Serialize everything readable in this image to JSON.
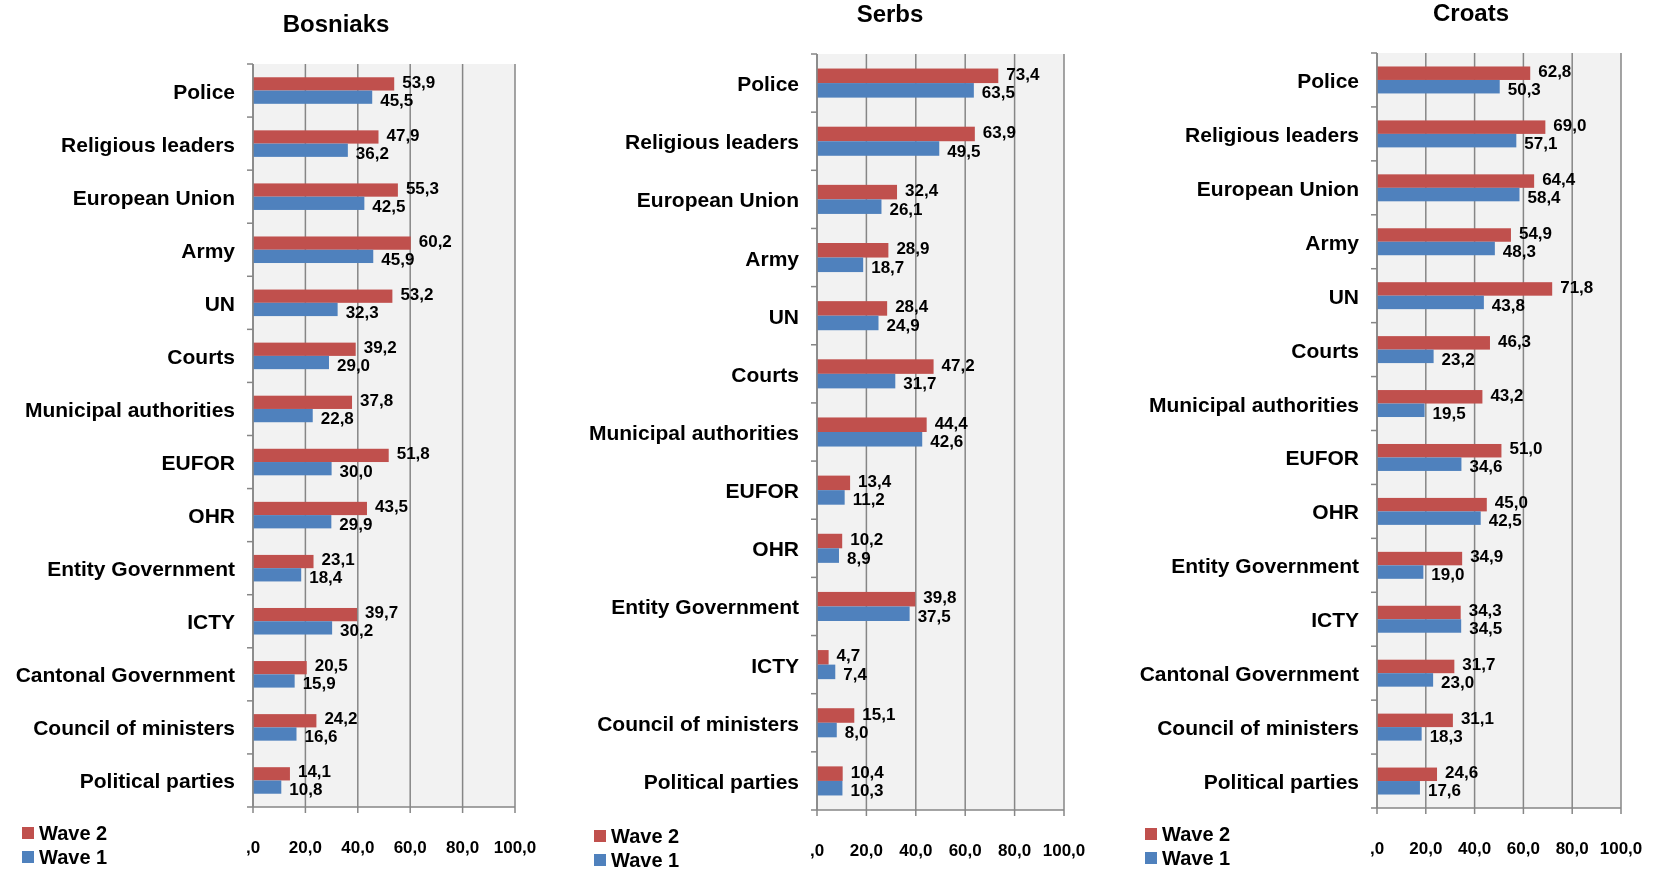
{
  "chart_data": [
    {
      "type": "bar",
      "orientation": "horizontal",
      "title": "Bosniaks",
      "categories": [
        "Police",
        "Religious leaders",
        "European Union",
        "Army",
        "UN",
        "Courts",
        "Municipal authorities",
        "EUFOR",
        "OHR",
        "Entity Government",
        "ICTY",
        "Cantonal Government",
        "Council of ministers",
        "Political parties"
      ],
      "series": [
        {
          "name": "Wave 2",
          "color": "#c0504d",
          "values": [
            53.9,
            47.9,
            55.3,
            60.2,
            53.2,
            39.2,
            37.8,
            51.8,
            43.5,
            23.1,
            39.7,
            20.5,
            24.2,
            14.1
          ],
          "value_labels": [
            "53,9",
            "47,9",
            "55,3",
            "60,2",
            "53,2",
            "39,2",
            "37,8",
            "51,8",
            "43,5",
            "23,1",
            "39,7",
            "20,5",
            "24,2",
            "14,1"
          ]
        },
        {
          "name": "Wave 1",
          "color": "#4f81bd",
          "values": [
            45.5,
            36.2,
            42.5,
            45.9,
            32.3,
            29.0,
            22.8,
            30.0,
            29.9,
            18.4,
            30.2,
            15.9,
            16.6,
            10.8
          ],
          "value_labels": [
            "45,5",
            "36,2",
            "42,5",
            "45,9",
            "32,3",
            "29,0",
            "22,8",
            "30,0",
            "29,9",
            "18,4",
            "30,2",
            "15,9",
            "16,6",
            "10,8"
          ]
        }
      ],
      "xlim": [
        0,
        100
      ],
      "xticks": [
        {
          "value": 0,
          "label": ",0"
        },
        {
          "value": 20,
          "label": "20,0"
        },
        {
          "value": 40,
          "label": "40,0"
        },
        {
          "value": 60,
          "label": "60,0"
        },
        {
          "value": 80,
          "label": "80,0"
        },
        {
          "value": 100,
          "label": "100,0"
        }
      ],
      "grid": "x",
      "legend": "bottom left"
    },
    {
      "type": "bar",
      "orientation": "horizontal",
      "title": "Serbs",
      "categories": [
        "Police",
        "Religious leaders",
        "European Union",
        "Army",
        "UN",
        "Courts",
        "Municipal authorities",
        "EUFOR",
        "OHR",
        "Entity Government",
        "ICTY",
        "Council of ministers",
        "Political parties"
      ],
      "series": [
        {
          "name": "Wave 2",
          "color": "#c0504d",
          "values": [
            73.4,
            63.9,
            32.4,
            28.9,
            28.4,
            47.2,
            44.4,
            13.4,
            10.2,
            39.8,
            4.7,
            15.1,
            10.4
          ],
          "value_labels": [
            "73,4",
            "63,9",
            "32,4",
            "28,9",
            "28,4",
            "47,2",
            "44,4",
            "13,4",
            "10,2",
            "39,8",
            "4,7",
            "15,1",
            "10,4"
          ]
        },
        {
          "name": "Wave 1",
          "color": "#4f81bd",
          "values": [
            63.5,
            49.5,
            26.1,
            18.7,
            24.9,
            31.7,
            42.6,
            11.2,
            8.9,
            37.5,
            7.4,
            8.0,
            10.3
          ],
          "value_labels": [
            "63,5",
            "49,5",
            "26,1",
            "18,7",
            "24,9",
            "31,7",
            "42,6",
            "11,2",
            "8,9",
            "37,5",
            "7,4",
            "8,0",
            "10,3"
          ]
        }
      ],
      "xlim": [
        0,
        100
      ],
      "xticks": [
        {
          "value": 0,
          "label": ",0"
        },
        {
          "value": 20,
          "label": "20,0"
        },
        {
          "value": 40,
          "label": "40,0"
        },
        {
          "value": 60,
          "label": "60,0"
        },
        {
          "value": 80,
          "label": "80,0"
        },
        {
          "value": 100,
          "label": "100,0"
        }
      ],
      "grid": "x",
      "legend": "bottom left"
    },
    {
      "type": "bar",
      "orientation": "horizontal",
      "title": "Croats",
      "categories": [
        "Police",
        "Religious leaders",
        "European Union",
        "Army",
        "UN",
        "Courts",
        "Municipal authorities",
        "EUFOR",
        "OHR",
        "Entity Government",
        "ICTY",
        "Cantonal Government",
        "Council of ministers",
        "Political parties"
      ],
      "series": [
        {
          "name": "Wave 2",
          "color": "#c0504d",
          "values": [
            62.8,
            69.0,
            64.4,
            54.9,
            71.8,
            46.3,
            43.2,
            51.0,
            45.0,
            34.9,
            34.3,
            31.7,
            31.1,
            24.6
          ],
          "value_labels": [
            "62,8",
            "69,0",
            "64,4",
            "54,9",
            "71,8",
            "46,3",
            "43,2",
            "51,0",
            "45,0",
            "34,9",
            "34,3",
            "31,7",
            "31,1",
            "24,6"
          ]
        },
        {
          "name": "Wave 1",
          "color": "#4f81bd",
          "values": [
            50.3,
            57.1,
            58.4,
            48.3,
            43.8,
            23.2,
            19.5,
            34.6,
            42.5,
            19.0,
            34.5,
            23.0,
            18.3,
            17.6
          ],
          "value_labels": [
            "50,3",
            "57,1",
            "58,4",
            "48,3",
            "43,8",
            "23,2",
            "19,5",
            "34,6",
            "42,5",
            "19,0",
            "34,5",
            "23,0",
            "18,3",
            "17,6"
          ]
        }
      ],
      "xlim": [
        0,
        100
      ],
      "xticks": [
        {
          "value": 0,
          "label": ",0"
        },
        {
          "value": 20,
          "label": "20,0"
        },
        {
          "value": 40,
          "label": "40,0"
        },
        {
          "value": 60,
          "label": "60,0"
        },
        {
          "value": 80,
          "label": "80,0"
        },
        {
          "value": 100,
          "label": "100,0"
        }
      ],
      "grid": "x",
      "legend": "bottom left"
    }
  ]
}
